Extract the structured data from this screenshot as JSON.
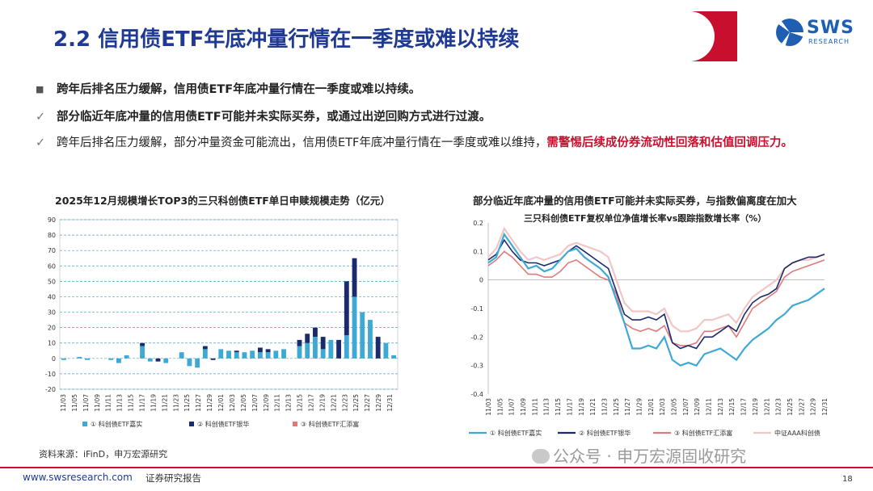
{
  "header": {
    "title": "2.2 信用债ETF年底冲量行情在一季度或难以持续",
    "logo_name": "SWS",
    "logo_sub": "RESEARCH"
  },
  "bullets": [
    {
      "marker": "■",
      "text": "跨年后排名压力缓解，信用债ETF年底冲量行情在一季度或难以持续。"
    },
    {
      "marker": "✓",
      "text": "部分临近年底冲量的信用债ETF可能并未实际买券，或通过出逆回购方式进行过渡。"
    },
    {
      "marker": "✓",
      "text_before": "跨年后排名压力缓解，部分冲量资金可能流出，信用债ETF年底冲量行情在一季度或难以维持，",
      "text_red": "需警惕后续成份券流动性回落和估值回调压力。"
    }
  ],
  "chart_left_title": "2025年12月规模增长TOP3的三只科创债ETF单日申赎规模走势（亿元）",
  "chart_right_title": "部分临近年底冲量的信用债ETF可能并未实际买券，与指数偏离度在加大",
  "chart_right_subtitle": "三只科创债ETF复权单位净值增长率vs跟踪指数增长率（%）",
  "source": "资料来源：iFinD，申万宏源研究",
  "footer": {
    "url": "www.swsresearch.com",
    "doc_type": "证券研究报告",
    "page": "18"
  },
  "watermark": "公众号 · 申万宏源固收研究",
  "colors": {
    "brand_red": "#c8102e",
    "title_blue": "#1f3a93",
    "s1": "#3fa9d6",
    "s2": "#1a2a6c",
    "s3": "#e07a7a",
    "idx": "#f2c6c6"
  },
  "chart_data": [
    {
      "type": "bar",
      "stacked": true,
      "ylim": [
        -20,
        90
      ],
      "yticks": [
        -20,
        -10,
        0,
        10,
        20,
        30,
        40,
        50,
        60,
        70,
        80,
        90
      ],
      "grid": true,
      "legend_position": "bottom",
      "categories": [
        "11/03",
        "11/04",
        "11/05",
        "11/06",
        "11/07",
        "11/10",
        "11/11",
        "11/12",
        "11/13",
        "11/14",
        "11/17",
        "11/18",
        "11/19",
        "11/20",
        "11/21",
        "11/24",
        "11/25",
        "11/26",
        "11/27",
        "11/28",
        "12/01",
        "12/02",
        "12/03",
        "12/04",
        "12/05",
        "12/08",
        "12/09",
        "12/10",
        "12/11",
        "12/12",
        "12/15",
        "12/16",
        "12/17",
        "12/18",
        "12/19",
        "12/22",
        "12/23",
        "12/24",
        "12/25",
        "12/26",
        "12/29",
        "12/30",
        "12/31"
      ],
      "tick_labels": [
        "11/03",
        "11/05",
        "11/07",
        "11/09",
        "11/11",
        "11/13",
        "11/15",
        "11/17",
        "11/19",
        "11/21",
        "11/23",
        "11/25",
        "11/27",
        "11/29",
        "12/01",
        "12/03",
        "12/05",
        "12/07",
        "12/09",
        "12/11",
        "12/13",
        "12/15",
        "12/17",
        "12/19",
        "12/21",
        "12/23",
        "12/25",
        "12/27",
        "12/29",
        "12/31"
      ],
      "series": [
        {
          "name": "① 科创债ETF嘉实",
          "values": [
            -1,
            0,
            1,
            -1,
            0,
            0,
            -1,
            -3,
            2,
            0,
            8,
            -2,
            0,
            -3,
            0,
            4,
            -5,
            -6,
            6,
            0,
            6,
            5,
            4,
            4,
            5,
            4,
            4,
            5,
            6,
            0,
            8,
            10,
            14,
            6,
            12,
            0,
            15,
            40,
            30,
            25,
            0,
            10,
            2
          ]
        },
        {
          "name": "② 科创债ETF银华",
          "values": [
            0,
            0,
            0,
            0,
            0,
            0,
            0,
            0,
            0,
            0,
            2,
            0,
            -2,
            0,
            0,
            0,
            0,
            0,
            2,
            -1,
            0,
            0,
            1,
            0,
            0,
            3,
            2,
            0,
            0,
            0,
            4,
            6,
            6,
            8,
            0,
            12,
            35,
            25,
            0,
            0,
            14,
            0,
            0
          ]
        },
        {
          "name": "③ 科创债ETF汇添富",
          "values": [
            0,
            0,
            0,
            0,
            0,
            0,
            0,
            0,
            0,
            0,
            0,
            0,
            0,
            0,
            0,
            0,
            0,
            0,
            0,
            0,
            0,
            0,
            0,
            0,
            0,
            0,
            0,
            0,
            0,
            0,
            0,
            0,
            0,
            0,
            0,
            0,
            0,
            0,
            0,
            0,
            0,
            0,
            0
          ]
        }
      ]
    },
    {
      "type": "line",
      "ylim": [
        -0.4,
        0.2
      ],
      "yticks": [
        -0.4,
        -0.3,
        -0.2,
        -0.1,
        0,
        0.1,
        0.2
      ],
      "grid": false,
      "legend_position": "bottom",
      "x": [
        "11/03",
        "11/04",
        "11/05",
        "11/06",
        "11/07",
        "11/10",
        "11/11",
        "11/12",
        "11/13",
        "11/14",
        "11/17",
        "11/18",
        "11/19",
        "11/20",
        "11/21",
        "11/24",
        "11/25",
        "11/26",
        "11/27",
        "11/28",
        "12/01",
        "12/02",
        "12/03",
        "12/04",
        "12/05",
        "12/08",
        "12/09",
        "12/10",
        "12/11",
        "12/12",
        "12/15",
        "12/16",
        "12/17",
        "12/18",
        "12/19",
        "12/22",
        "12/23",
        "12/24",
        "12/25",
        "12/26",
        "12/29",
        "12/30",
        "12/31"
      ],
      "tick_labels": [
        "11/03",
        "11/05",
        "11/07",
        "11/09",
        "11/11",
        "11/13",
        "11/15",
        "11/17",
        "11/19",
        "11/21",
        "11/23",
        "11/25",
        "11/27",
        "11/29",
        "12/01",
        "12/03",
        "12/05",
        "12/07",
        "12/09",
        "12/11",
        "12/13",
        "12/15",
        "12/17",
        "12/19",
        "12/21",
        "12/23",
        "12/25",
        "12/27",
        "12/29",
        "12/31"
      ],
      "series": [
        {
          "name": "① 科创债ETF嘉实",
          "values": [
            0.06,
            0.08,
            0.16,
            0.12,
            0.08,
            0.04,
            0.05,
            0.03,
            0.04,
            0.07,
            0.1,
            0.11,
            0.08,
            0.06,
            0.04,
            0.01,
            -0.07,
            -0.15,
            -0.24,
            -0.24,
            -0.23,
            -0.24,
            -0.2,
            -0.28,
            -0.3,
            -0.29,
            -0.3,
            -0.26,
            -0.25,
            -0.24,
            -0.26,
            -0.28,
            -0.24,
            -0.21,
            -0.19,
            -0.17,
            -0.14,
            -0.12,
            -0.09,
            -0.08,
            -0.07,
            -0.05,
            -0.03
          ]
        },
        {
          "name": "② 科创债ETF银华",
          "values": [
            0.07,
            0.09,
            0.14,
            0.1,
            0.07,
            0.06,
            0.06,
            0.05,
            0.06,
            0.07,
            0.1,
            0.12,
            0.1,
            0.08,
            0.06,
            0.04,
            -0.04,
            -0.12,
            -0.14,
            -0.14,
            -0.13,
            -0.14,
            -0.12,
            -0.22,
            -0.24,
            -0.23,
            -0.24,
            -0.2,
            -0.2,
            -0.18,
            -0.16,
            -0.18,
            -0.12,
            -0.08,
            -0.06,
            -0.05,
            -0.03,
            0.04,
            0.06,
            0.07,
            0.08,
            0.08,
            0.09
          ]
        },
        {
          "name": "③ 科创债ETF汇添富",
          "values": [
            0.05,
            0.07,
            0.1,
            0.08,
            0.05,
            0.02,
            0.02,
            0.01,
            0.01,
            0.03,
            0.06,
            0.07,
            0.05,
            0.03,
            0.01,
            0,
            -0.05,
            -0.15,
            -0.17,
            -0.18,
            -0.17,
            -0.18,
            -0.16,
            -0.22,
            -0.23,
            -0.23,
            -0.22,
            -0.18,
            -0.18,
            -0.17,
            -0.16,
            -0.2,
            -0.15,
            -0.1,
            -0.08,
            -0.06,
            -0.04,
            0.01,
            0.03,
            0.04,
            0.05,
            0.06,
            0.07
          ]
        },
        {
          "name": "中证AAA科创债",
          "values": [
            0.08,
            0.11,
            0.18,
            0.14,
            0.1,
            0.07,
            0.08,
            0.07,
            0.08,
            0.09,
            0.12,
            0.13,
            0.12,
            0.11,
            0.1,
            0.08,
            0,
            -0.08,
            -0.11,
            -0.11,
            -0.11,
            -0.12,
            -0.1,
            -0.16,
            -0.18,
            -0.18,
            -0.17,
            -0.14,
            -0.14,
            -0.13,
            -0.12,
            -0.15,
            -0.1,
            -0.06,
            -0.04,
            -0.02,
            0,
            0.04,
            0.06,
            0.07,
            0.07,
            0.08,
            0.09
          ]
        }
      ]
    }
  ]
}
